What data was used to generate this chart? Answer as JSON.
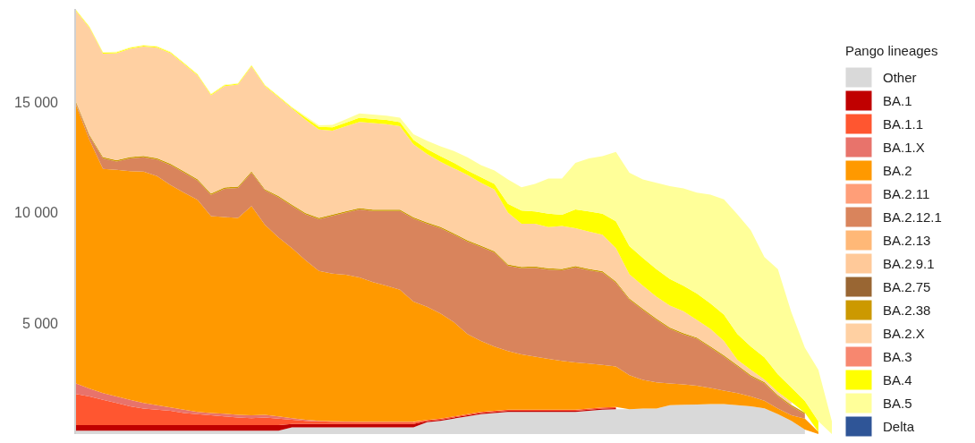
{
  "chart_data": {
    "type": "area",
    "stacked": true,
    "legend": "right",
    "legend_title": "Pango lineages",
    "categories": [
      null,
      null,
      null,
      null,
      null,
      null,
      null,
      null,
      null,
      null,
      null,
      null,
      null,
      null,
      null,
      null,
      null,
      null,
      null,
      null,
      null,
      null,
      null,
      null,
      null,
      null,
      null,
      null,
      null,
      null,
      null,
      null,
      null,
      null,
      null,
      null,
      null,
      null,
      null,
      null,
      null,
      null,
      null,
      null,
      null,
      null,
      null,
      null,
      null,
      null,
      null,
      null,
      null,
      null,
      null,
      null,
      null
    ],
    "ylim": [
      0,
      19200
    ],
    "yticks": [
      {
        "value": 5000,
        "label": "5 000"
      },
      {
        "value": 10000,
        "label": "10 000"
      },
      {
        "value": 15000,
        "label": "15 000"
      }
    ],
    "series": [
      {
        "name": "Other",
        "color": "#d9d9d9",
        "values": [
          150,
          150,
          150,
          150,
          150,
          150,
          150,
          150,
          150,
          150,
          150,
          150,
          150,
          150,
          150,
          150,
          300,
          300,
          300,
          300,
          300,
          300,
          300,
          300,
          300,
          300,
          540,
          600,
          700,
          800,
          900,
          950,
          1000,
          1000,
          1000,
          1000,
          1000,
          1000,
          1050,
          1100,
          1120,
          1120,
          1150,
          1150,
          1300,
          1320,
          1330,
          1350,
          1350,
          1300,
          1250,
          1160,
          900,
          600,
          200,
          null,
          null
        ]
      },
      {
        "name": "BA.1",
        "color": "#c00000",
        "values": [
          250,
          250,
          250,
          250,
          250,
          250,
          250,
          250,
          250,
          250,
          250,
          250,
          250,
          250,
          250,
          250,
          150,
          150,
          150,
          150,
          150,
          150,
          150,
          150,
          150,
          150,
          50,
          50,
          50,
          50,
          50,
          50,
          50,
          50,
          50,
          50,
          50,
          50,
          50,
          50,
          50,
          null,
          null,
          null,
          null,
          null,
          null,
          null,
          null,
          null,
          null,
          null,
          null,
          null,
          null,
          null,
          null
        ]
      },
      {
        "name": "BA.1.1",
        "color": "#ff5630",
        "values": [
          1410,
          1300,
          1150,
          1000,
          850,
          750,
          700,
          650,
          550,
          500,
          450,
          400,
          350,
          320,
          350,
          300,
          200,
          150,
          130,
          110,
          100,
          90,
          90,
          90,
          90,
          90,
          50,
          50,
          50,
          50,
          50,
          50,
          50,
          50,
          50,
          50,
          50,
          50,
          50,
          50,
          50,
          null,
          null,
          null,
          null,
          null,
          null,
          null,
          null,
          null,
          null,
          null,
          null,
          null,
          null,
          null,
          null
        ]
      },
      {
        "name": "BA.1.X",
        "color": "#e8736b",
        "values": [
          470,
          350,
          300,
          300,
          300,
          250,
          200,
          150,
          150,
          100,
          100,
          120,
          120,
          130,
          120,
          100,
          70,
          50,
          20,
          20,
          20,
          20,
          20,
          20,
          20,
          20,
          null,
          null,
          null,
          null,
          null,
          null,
          null,
          null,
          null,
          null,
          null,
          null,
          null,
          null,
          null,
          null,
          null,
          null,
          null,
          null,
          null,
          null,
          null,
          null,
          null,
          null,
          null,
          null,
          null,
          null,
          null
        ]
      },
      {
        "name": "BA.2",
        "color": "#ff9900",
        "values": [
          12580,
          11230,
          10120,
          10230,
          10320,
          10450,
          10350,
          10050,
          9800,
          9580,
          8890,
          8880,
          8890,
          9450,
          8580,
          8080,
          7680,
          7200,
          6770,
          6670,
          6630,
          6510,
          6300,
          6140,
          5960,
          5420,
          5110,
          4750,
          4250,
          3620,
          3200,
          2900,
          2650,
          2500,
          2400,
          2300,
          2200,
          2130,
          2030,
          1920,
          1830,
          1540,
          1300,
          1180,
          980,
          920,
          850,
          730,
          610,
          550,
          450,
          350,
          250,
          250,
          500,
          100,
          null
        ]
      },
      {
        "name": "BA.2.11",
        "color": "#ff9e78",
        "values": [
          null,
          null,
          null,
          null,
          null,
          null,
          null,
          null,
          null,
          null,
          null,
          null,
          null,
          null,
          null,
          null,
          null,
          null,
          null,
          null,
          null,
          null,
          null,
          null,
          null,
          null,
          null,
          null,
          null,
          null,
          null,
          null,
          null,
          null,
          null,
          null,
          null,
          null,
          null,
          null,
          null,
          null,
          null,
          null,
          null,
          null,
          null,
          null,
          null,
          null,
          null,
          null,
          null,
          null,
          null,
          null,
          null
        ]
      },
      {
        "name": "BA.2.12.1",
        "color": "#d9845c",
        "values": [
          90,
          170,
          480,
          380,
          580,
          650,
          750,
          900,
          900,
          870,
          960,
          1280,
          1360,
          1500,
          1550,
          1810,
          1900,
          2070,
          2330,
          2600,
          2800,
          3080,
          3220,
          3380,
          3560,
          3750,
          3750,
          3850,
          3950,
          4170,
          4250,
          4250,
          3850,
          3890,
          4010,
          4030,
          4100,
          4300,
          4220,
          4180,
          3780,
          3400,
          3150,
          2820,
          2470,
          2260,
          2120,
          1820,
          1540,
          1200,
          900,
          770,
          550,
          400,
          200,
          null,
          null
        ]
      },
      {
        "name": "BA.2.13",
        "color": "#ffb877",
        "values": [
          null,
          null,
          null,
          null,
          null,
          null,
          null,
          null,
          null,
          null,
          null,
          null,
          null,
          null,
          null,
          null,
          null,
          null,
          null,
          null,
          null,
          null,
          null,
          null,
          null,
          null,
          null,
          null,
          null,
          null,
          null,
          null,
          null,
          null,
          null,
          null,
          null,
          null,
          null,
          null,
          null,
          null,
          null,
          null,
          null,
          null,
          null,
          null,
          null,
          null,
          null,
          null,
          null,
          null,
          null,
          null,
          null
        ]
      },
      {
        "name": "BA.2.9.1",
        "color": "#ffc999",
        "values": [
          null,
          null,
          null,
          null,
          null,
          null,
          null,
          null,
          null,
          null,
          null,
          null,
          null,
          null,
          null,
          null,
          null,
          null,
          null,
          null,
          null,
          null,
          null,
          null,
          null,
          null,
          null,
          null,
          null,
          null,
          null,
          null,
          null,
          null,
          null,
          null,
          null,
          null,
          null,
          null,
          null,
          null,
          null,
          null,
          null,
          null,
          null,
          null,
          null,
          null,
          null,
          null,
          null,
          null,
          null,
          null,
          null
        ]
      },
      {
        "name": "BA.2.75",
        "color": "#996633",
        "values": [
          null,
          null,
          null,
          null,
          null,
          null,
          null,
          null,
          null,
          null,
          null,
          null,
          null,
          null,
          null,
          null,
          null,
          null,
          null,
          null,
          null,
          null,
          null,
          null,
          null,
          null,
          null,
          null,
          null,
          null,
          null,
          null,
          null,
          null,
          null,
          null,
          null,
          null,
          null,
          null,
          null,
          null,
          null,
          null,
          null,
          null,
          null,
          null,
          null,
          null,
          null,
          null,
          null,
          null,
          null,
          null,
          null
        ]
      },
      {
        "name": "BA.2.38",
        "color": "#cc9900",
        "values": [
          60,
          60,
          60,
          60,
          60,
          60,
          60,
          60,
          60,
          60,
          60,
          60,
          60,
          60,
          60,
          60,
          60,
          60,
          60,
          60,
          60,
          60,
          60,
          60,
          60,
          60,
          60,
          60,
          60,
          60,
          60,
          60,
          60,
          60,
          60,
          60,
          60,
          60,
          60,
          60,
          60,
          60,
          60,
          60,
          60,
          60,
          60,
          60,
          60,
          60,
          60,
          60,
          60,
          60,
          60,
          null,
          null
        ]
      },
      {
        "name": "BA.2.X",
        "color": "#ffd0a2",
        "values": [
          4090,
          4830,
          4670,
          4830,
          4890,
          4940,
          4990,
          4990,
          4840,
          4690,
          4440,
          4570,
          4600,
          4740,
          4640,
          4460,
          4340,
          4220,
          3990,
          3790,
          3840,
          3890,
          3910,
          3860,
          3760,
          3300,
          3090,
          2940,
          2940,
          2950,
          2840,
          2790,
          2340,
          1950,
          1930,
          1860,
          1940,
          1710,
          1690,
          1640,
          1510,
          1100,
          1040,
          990,
          990,
          990,
          790,
          790,
          640,
          250,
          240,
          130,
          140,
          140,
          null,
          null,
          null
        ]
      },
      {
        "name": "BA.3",
        "color": "#f7876f",
        "values": [
          null,
          null,
          null,
          null,
          null,
          null,
          null,
          null,
          null,
          null,
          null,
          null,
          null,
          null,
          null,
          null,
          null,
          null,
          null,
          null,
          null,
          null,
          null,
          null,
          null,
          null,
          null,
          null,
          null,
          null,
          null,
          null,
          null,
          null,
          null,
          null,
          null,
          null,
          null,
          null,
          null,
          null,
          null,
          null,
          null,
          null,
          null,
          null,
          null,
          null,
          null,
          null,
          null,
          null,
          null,
          null,
          null
        ]
      },
      {
        "name": "BA.4",
        "color": "#ffff00",
        "values": [
          40,
          40,
          40,
          40,
          40,
          40,
          40,
          40,
          40,
          40,
          40,
          40,
          40,
          40,
          40,
          40,
          40,
          100,
          120,
          150,
          170,
          190,
          190,
          190,
          190,
          200,
          220,
          250,
          250,
          200,
          250,
          250,
          400,
          600,
          550,
          600,
          500,
          850,
          900,
          950,
          1210,
          1270,
          1250,
          1250,
          1200,
          1150,
          1200,
          1150,
          1200,
          1160,
          1050,
          1000,
          800,
          650,
          540,
          480,
          null
        ]
      },
      {
        "name": "BA.5",
        "color": "#ffff99",
        "values": [
          30,
          30,
          30,
          30,
          30,
          30,
          30,
          30,
          30,
          30,
          30,
          30,
          30,
          30,
          30,
          30,
          30,
          60,
          80,
          120,
          150,
          190,
          190,
          190,
          200,
          250,
          380,
          450,
          530,
          600,
          550,
          600,
          1100,
          1050,
          1250,
          1590,
          1640,
          2100,
          2400,
          2600,
          3130,
          3310,
          3550,
          3900,
          4200,
          4400,
          4550,
          4910,
          5200,
          5400,
          5250,
          4520,
          4750,
          3400,
          2400,
          2320,
          580
        ]
      },
      {
        "name": "Delta",
        "color": "#2f5597",
        "values": [
          null,
          null,
          null,
          null,
          null,
          null,
          null,
          null,
          null,
          null,
          null,
          null,
          null,
          null,
          null,
          null,
          null,
          null,
          null,
          null,
          null,
          null,
          null,
          null,
          null,
          null,
          null,
          null,
          null,
          null,
          null,
          null,
          null,
          null,
          null,
          null,
          null,
          null,
          null,
          null,
          null,
          null,
          null,
          null,
          null,
          null,
          null,
          null,
          null,
          null,
          null,
          null,
          null,
          null,
          null,
          null,
          null
        ]
      }
    ]
  }
}
